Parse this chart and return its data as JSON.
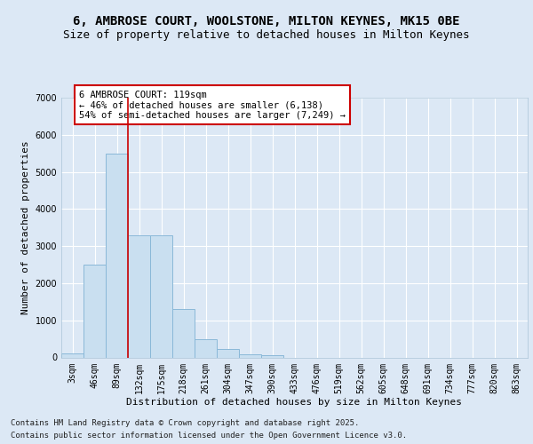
{
  "title_line1": "6, AMBROSE COURT, WOOLSTONE, MILTON KEYNES, MK15 0BE",
  "title_line2": "Size of property relative to detached houses in Milton Keynes",
  "xlabel": "Distribution of detached houses by size in Milton Keynes",
  "ylabel": "Number of detached properties",
  "categories": [
    "3sqm",
    "46sqm",
    "89sqm",
    "132sqm",
    "175sqm",
    "218sqm",
    "261sqm",
    "304sqm",
    "347sqm",
    "390sqm",
    "433sqm",
    "476sqm",
    "519sqm",
    "562sqm",
    "605sqm",
    "648sqm",
    "691sqm",
    "734sqm",
    "777sqm",
    "820sqm",
    "863sqm"
  ],
  "values": [
    100,
    2500,
    5500,
    3300,
    3300,
    1300,
    480,
    220,
    90,
    60,
    0,
    0,
    0,
    0,
    0,
    0,
    0,
    0,
    0,
    0,
    0
  ],
  "bar_color": "#c9dff0",
  "bar_edge_color": "#8ab8d8",
  "vline_color": "#cc0000",
  "annotation_text": "6 AMBROSE COURT: 119sqm\n← 46% of detached houses are smaller (6,138)\n54% of semi-detached houses are larger (7,249) →",
  "annotation_box_color": "#ffffff",
  "annotation_box_edge": "#cc0000",
  "background_color": "#dce8f5",
  "plot_bg_color": "#dce8f5",
  "ylim": [
    0,
    7000
  ],
  "yticks": [
    0,
    1000,
    2000,
    3000,
    4000,
    5000,
    6000,
    7000
  ],
  "footer_line1": "Contains HM Land Registry data © Crown copyright and database right 2025.",
  "footer_line2": "Contains public sector information licensed under the Open Government Licence v3.0.",
  "title_fontsize": 10,
  "subtitle_fontsize": 9,
  "axis_label_fontsize": 8,
  "tick_fontsize": 7,
  "annotation_fontsize": 7.5,
  "footer_fontsize": 6.5
}
